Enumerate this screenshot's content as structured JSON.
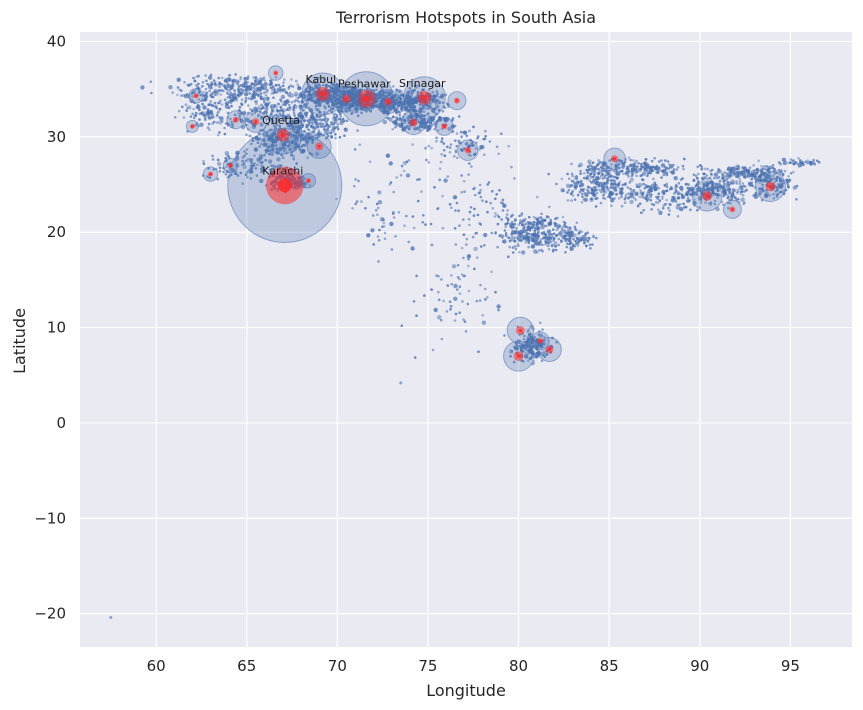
{
  "chart_data": {
    "type": "scatter",
    "title": "Terrorism Hotspots in South Asia",
    "xlabel": "Longitude",
    "ylabel": "Latitude",
    "xlim": [
      55.8,
      98.4
    ],
    "ylim": [
      -23.5,
      41
    ],
    "xticks": [
      60,
      65,
      70,
      75,
      80,
      85,
      90,
      95
    ],
    "yticks": [
      -20,
      -10,
      0,
      10,
      20,
      30,
      40
    ],
    "grid": true,
    "background": "#eaeaf2",
    "point_color": "#4c72b0",
    "hotspot_color": "#ff2a2a",
    "labels": [
      {
        "text": "Kabul",
        "lon": 69.2,
        "lat": 34.5
      },
      {
        "text": "Peshawar",
        "lon": 71.6,
        "lat": 34.0
      },
      {
        "text": "Srinagar",
        "lon": 74.8,
        "lat": 34.1
      },
      {
        "text": "Quetta",
        "lon": 67.0,
        "lat": 30.2
      },
      {
        "text": "Karachi",
        "lon": 67.1,
        "lat": 24.9
      }
    ],
    "bubbles": [
      {
        "lon": 67.1,
        "lat": 24.9,
        "r": 0.95
      },
      {
        "lon": 71.6,
        "lat": 34.0,
        "r": 0.45
      },
      {
        "lon": 69.2,
        "lat": 34.5,
        "r": 0.35
      },
      {
        "lon": 74.8,
        "lat": 34.1,
        "r": 0.35
      },
      {
        "lon": 67.0,
        "lat": 30.2,
        "r": 0.32
      },
      {
        "lon": 70.5,
        "lat": 34.0,
        "r": 0.22
      },
      {
        "lon": 72.8,
        "lat": 33.7,
        "r": 0.2
      },
      {
        "lon": 69.0,
        "lat": 29.0,
        "r": 0.2
      },
      {
        "lon": 65.5,
        "lat": 31.6,
        "r": 0.18
      },
      {
        "lon": 74.2,
        "lat": 31.5,
        "r": 0.2
      },
      {
        "lon": 75.9,
        "lat": 31.1,
        "r": 0.15
      },
      {
        "lon": 76.6,
        "lat": 33.8,
        "r": 0.15
      },
      {
        "lon": 77.2,
        "lat": 28.6,
        "r": 0.17
      },
      {
        "lon": 80.0,
        "lat": 7.0,
        "r": 0.25
      },
      {
        "lon": 80.1,
        "lat": 9.7,
        "r": 0.22
      },
      {
        "lon": 81.7,
        "lat": 7.7,
        "r": 0.2
      },
      {
        "lon": 81.2,
        "lat": 8.6,
        "r": 0.15
      },
      {
        "lon": 90.4,
        "lat": 23.8,
        "r": 0.25
      },
      {
        "lon": 93.9,
        "lat": 24.8,
        "r": 0.25
      },
      {
        "lon": 85.3,
        "lat": 27.7,
        "r": 0.18
      },
      {
        "lon": 91.8,
        "lat": 22.4,
        "r": 0.15
      },
      {
        "lon": 62.2,
        "lat": 34.3,
        "r": 0.12
      },
      {
        "lon": 63.0,
        "lat": 26.1,
        "r": 0.12
      },
      {
        "lon": 64.1,
        "lat": 27.0,
        "r": 0.12
      },
      {
        "lon": 68.4,
        "lat": 25.4,
        "r": 0.12
      },
      {
        "lon": 62.0,
        "lat": 31.1,
        "r": 0.1
      },
      {
        "lon": 64.4,
        "lat": 31.8,
        "r": 0.15
      },
      {
        "lon": 66.6,
        "lat": 36.7,
        "r": 0.12
      }
    ]
  }
}
